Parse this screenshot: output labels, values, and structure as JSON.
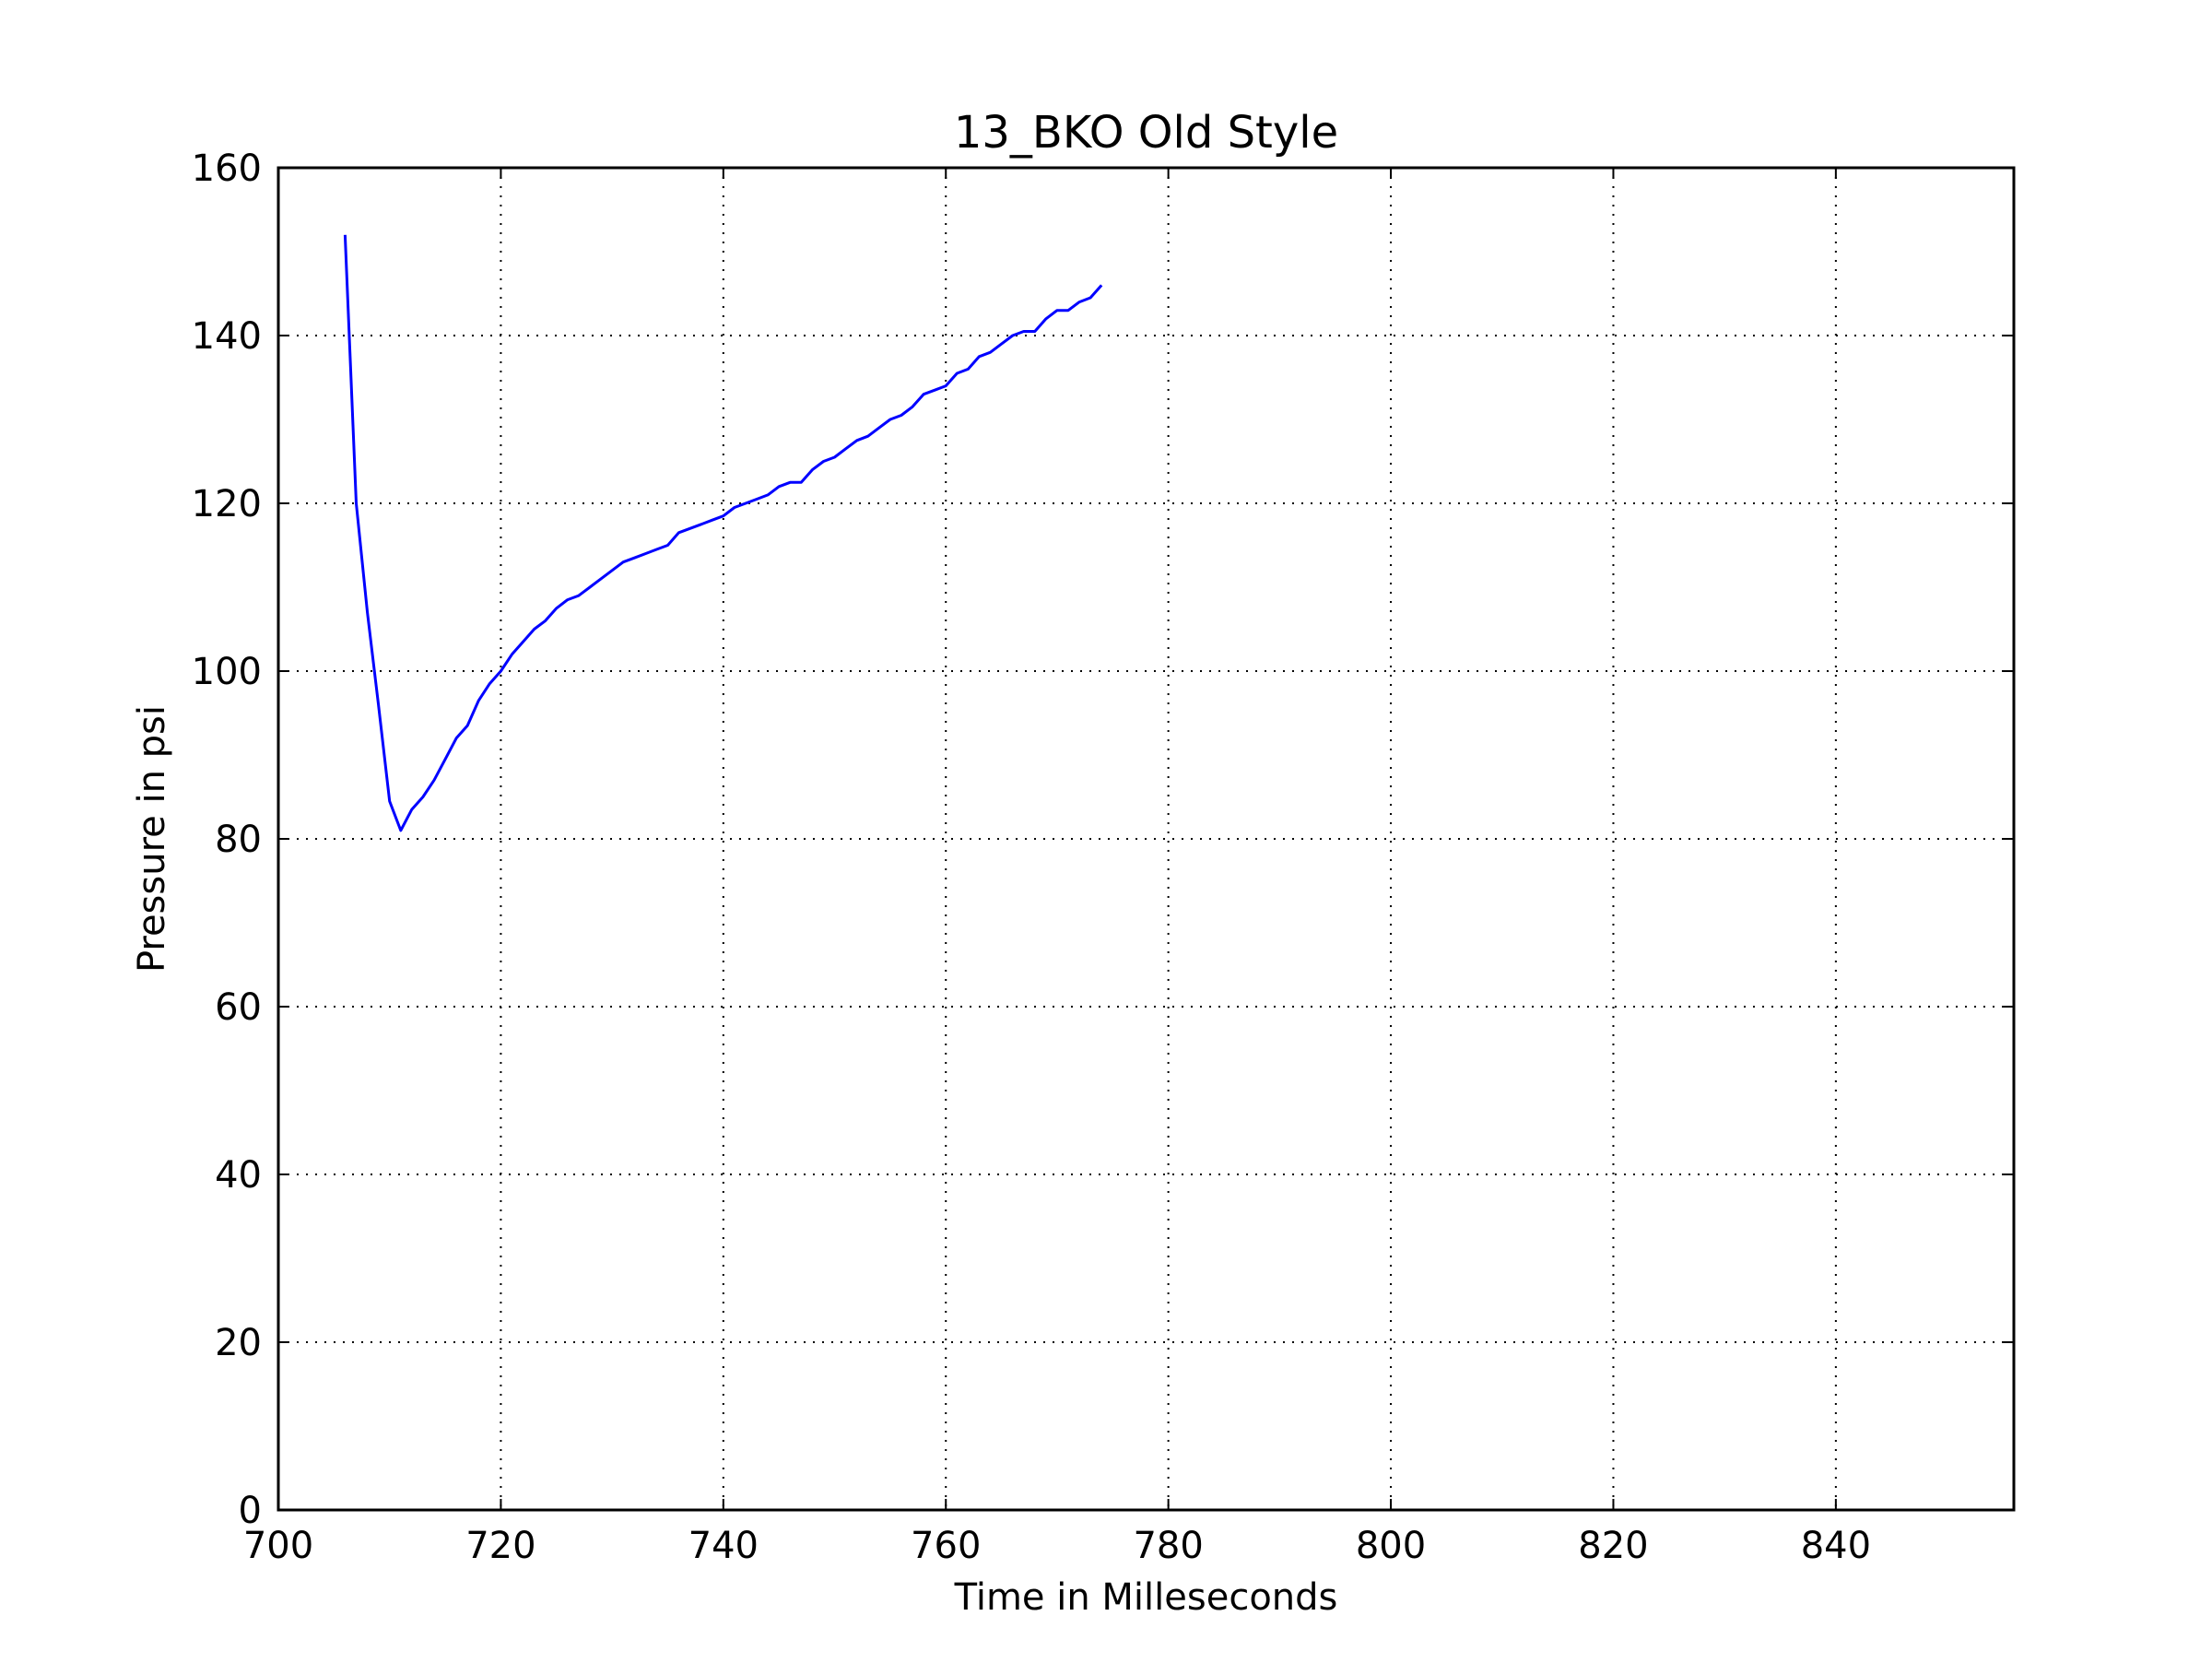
{
  "chart_data": {
    "type": "line",
    "title": "13_BKO Old Style",
    "xlabel": "Time in Milleseconds",
    "ylabel": "Pressure in psi",
    "xlim": [
      700,
      856
    ],
    "ylim": [
      0,
      160
    ],
    "xticks": [
      700,
      720,
      740,
      760,
      780,
      800,
      820,
      840
    ],
    "yticks": [
      0,
      20,
      40,
      60,
      80,
      100,
      120,
      140,
      160
    ],
    "grid": true,
    "line_color": "#0000ff",
    "series": [
      {
        "x": [
          706,
          707,
          708,
          709,
          710,
          711,
          712,
          713,
          714,
          715,
          716,
          717,
          718,
          719,
          720,
          721,
          722,
          723,
          724,
          725,
          726,
          727,
          728,
          729,
          730,
          731,
          732,
          733,
          734,
          735,
          736,
          737,
          738,
          739,
          740,
          741,
          742,
          743,
          744,
          745,
          746,
          747,
          748,
          749,
          750,
          751,
          752,
          753,
          754,
          755,
          756,
          757,
          758,
          759,
          760,
          761,
          762,
          763,
          764,
          765,
          766,
          767,
          768,
          769,
          770,
          771,
          772,
          773,
          774
        ],
        "y": [
          152,
          120,
          107,
          96,
          84.5,
          81,
          83.5,
          85,
          87,
          89.5,
          92,
          93.5,
          96.5,
          98.5,
          100,
          102,
          103.5,
          105,
          106,
          107.5,
          108.5,
          109,
          110,
          111,
          112,
          113,
          113.5,
          114,
          114.5,
          115,
          116.5,
          117,
          117.5,
          118,
          118.5,
          119.5,
          120,
          120.5,
          121,
          122,
          122.5,
          122.5,
          124,
          125,
          125.5,
          126.5,
          127.5,
          128,
          129,
          130,
          130.5,
          131.5,
          133,
          133.5,
          134,
          135.5,
          136,
          137.5,
          138,
          139,
          140,
          140.5,
          140.5,
          142,
          143,
          143,
          144,
          144.5,
          146
        ]
      }
    ]
  }
}
